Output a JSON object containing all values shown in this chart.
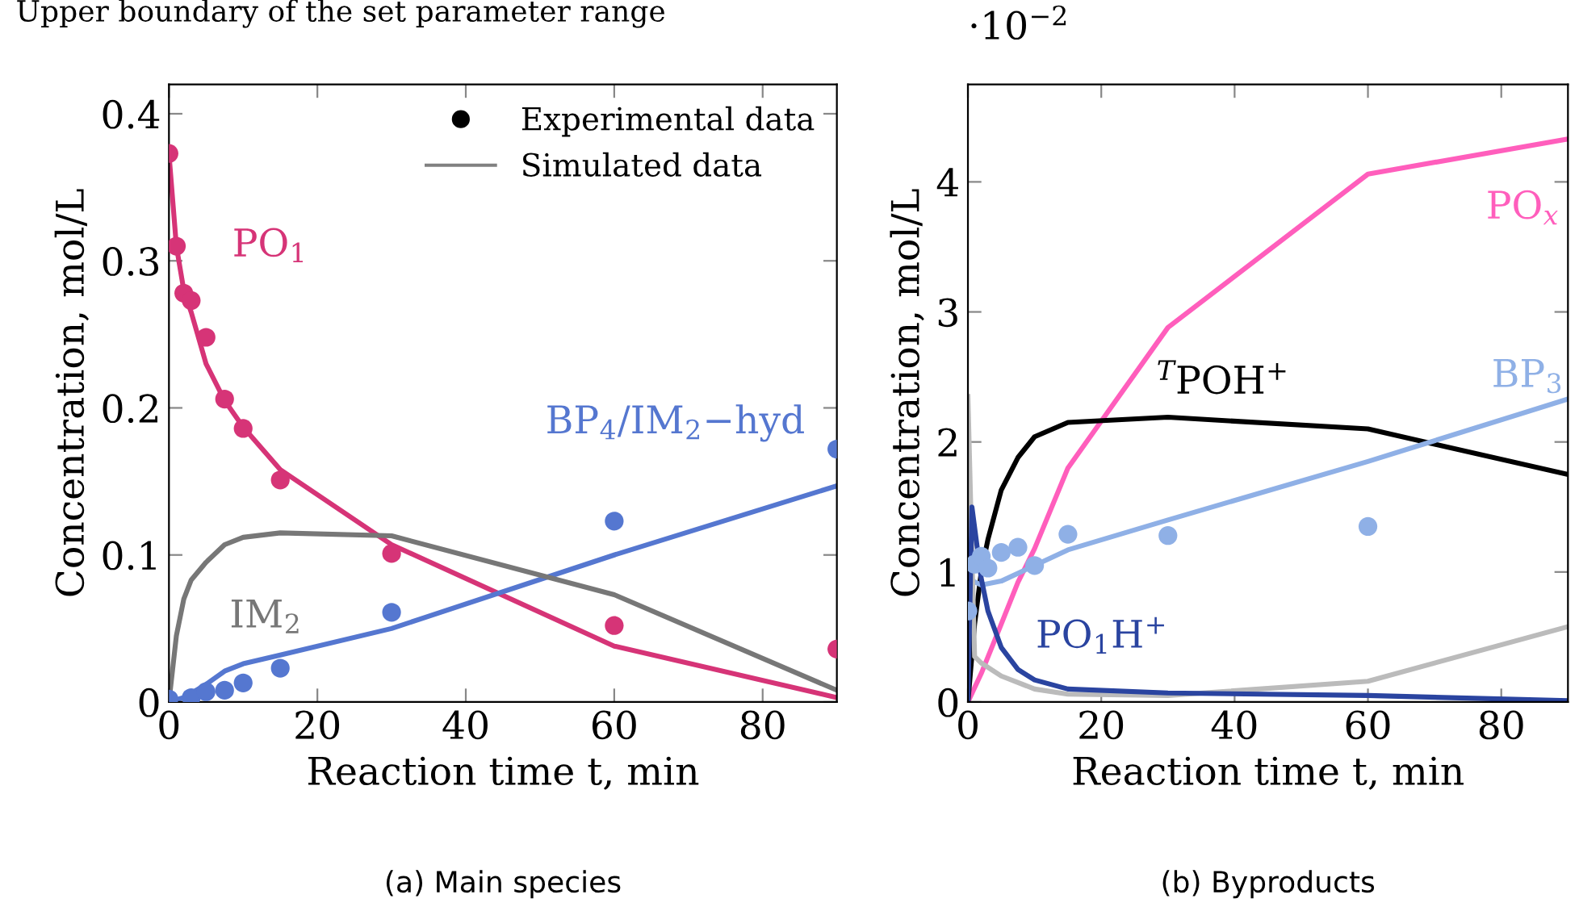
{
  "chart_data": [
    {
      "type": "line",
      "title": "(a) Main species",
      "xlabel": "Reaction time t, min",
      "ylabel": "Concentration, mol/L",
      "xlim": [
        0,
        90
      ],
      "ylim": [
        0,
        0.42
      ],
      "xticks": [
        0,
        20,
        40,
        60,
        80
      ],
      "yticks": [
        0,
        0.1,
        0.2,
        0.3,
        0.4
      ],
      "grid": false,
      "series": [
        {
          "type": "scatter",
          "name": "PO$_{1}$",
          "color": "#d63477",
          "x": [
            0,
            1,
            2,
            3,
            5,
            7.5,
            10,
            15,
            30,
            60,
            90
          ],
          "values": [
            0.373,
            0.31,
            0.278,
            0.273,
            0.248,
            0.206,
            0.186,
            0.151,
            0.101,
            0.052,
            0.036
          ]
        },
        {
          "color": "#d63477",
          "x": [
            0,
            1,
            2,
            3,
            5,
            7.5,
            10,
            15,
            30,
            60,
            90
          ],
          "values": [
            0.373,
            0.31,
            0.28,
            0.265,
            0.23,
            0.205,
            0.187,
            0.158,
            0.107,
            0.038,
            0.003
          ]
        },
        {
          "type": "scatter",
          "name": "BP$_{4}$/IM$_{2}$−hyd",
          "color": "#5577d0",
          "x": [
            0,
            3,
            5,
            7.5,
            10,
            15,
            30,
            60,
            90
          ],
          "values": [
            0.002,
            0.003,
            0.007,
            0.008,
            0.013,
            0.023,
            0.061,
            0.123,
            0.172
          ]
        },
        {
          "color": "#5577d0",
          "x": [
            0,
            2,
            5,
            7.5,
            10,
            15,
            30,
            60,
            90
          ],
          "values": [
            0,
            0.003,
            0.012,
            0.021,
            0.026,
            0.032,
            0.05,
            0.1,
            0.147
          ]
        },
        {
          "name": "IM$_{2}$",
          "color": "#777777",
          "x": [
            0,
            1,
            2,
            3,
            5,
            7.5,
            10,
            15,
            30,
            60,
            90
          ],
          "values": [
            0,
            0.045,
            0.07,
            0.083,
            0.095,
            0.107,
            0.112,
            0.115,
            0.113,
            0.073,
            0.008
          ]
        }
      ],
      "annotations": [
        "Upper boundary of the set parameter range",
        "Experimental data",
        "Simulated data"
      ]
    },
    {
      "type": "line",
      "title": "(b) Byproducts",
      "xlabel": "Reaction time t, min",
      "ylabel": "Concentration, mol/L",
      "xlim": [
        0,
        90
      ],
      "ylim": [
        0,
        4.75
      ],
      "xticks": [
        0,
        20,
        40,
        60,
        80
      ],
      "yticks": [
        0,
        1,
        2,
        3,
        4
      ],
      "grid": false,
      "series": [
        {
          "name": "PO$_{x}$",
          "color": "#ff5ebc",
          "x": [
            0,
            2,
            5,
            7.5,
            10,
            15,
            30,
            60,
            90
          ],
          "values": [
            0,
            0.22,
            0.6,
            0.92,
            1.18,
            1.8,
            2.88,
            4.06,
            4.33
          ]
        },
        {
          "name": "$^{T}$POH$^{+}$",
          "color": "#000000",
          "x": [
            0,
            1,
            2,
            3,
            5,
            7.5,
            10,
            15,
            30,
            60,
            90
          ],
          "values": [
            0,
            0.6,
            1.0,
            1.25,
            1.63,
            1.88,
            2.04,
            2.15,
            2.19,
            2.1,
            1.75
          ]
        },
        {
          "name": "BP$_{3}$",
          "color": "#8fb0e6",
          "x": [
            0,
            2,
            5,
            10,
            15,
            30,
            60,
            90
          ],
          "values": [
            0.95,
            0.9,
            0.93,
            1.05,
            1.17,
            1.4,
            1.85,
            2.33
          ]
        },
        {
          "type": "scatter",
          "color": "#8fb0e6",
          "x": [
            0,
            1,
            2,
            3,
            5,
            7.5,
            10,
            15,
            30,
            60
          ],
          "values": [
            0.7,
            1.06,
            1.12,
            1.03,
            1.15,
            1.19,
            1.05,
            1.29,
            1.28,
            1.35
          ]
        },
        {
          "color": "#bbbbbb",
          "x": [
            0,
            1,
            2,
            5,
            10,
            15,
            30,
            60,
            90
          ],
          "values": [
            2.35,
            0.35,
            0.3,
            0.2,
            0.1,
            0.06,
            0.05,
            0.16,
            0.58
          ]
        },
        {
          "name": "PO$_{1}$H$^{+}$",
          "color": "#2a44a0",
          "x": [
            0,
            0.6,
            2,
            3,
            5,
            7.5,
            10,
            15,
            30,
            60,
            90
          ],
          "values": [
            0,
            1.5,
            0.95,
            0.7,
            0.42,
            0.25,
            0.17,
            0.1,
            0.07,
            0.05,
            0.01
          ]
        }
      ],
      "annotations": [
        "·10$^{−2}$"
      ]
    }
  ]
}
